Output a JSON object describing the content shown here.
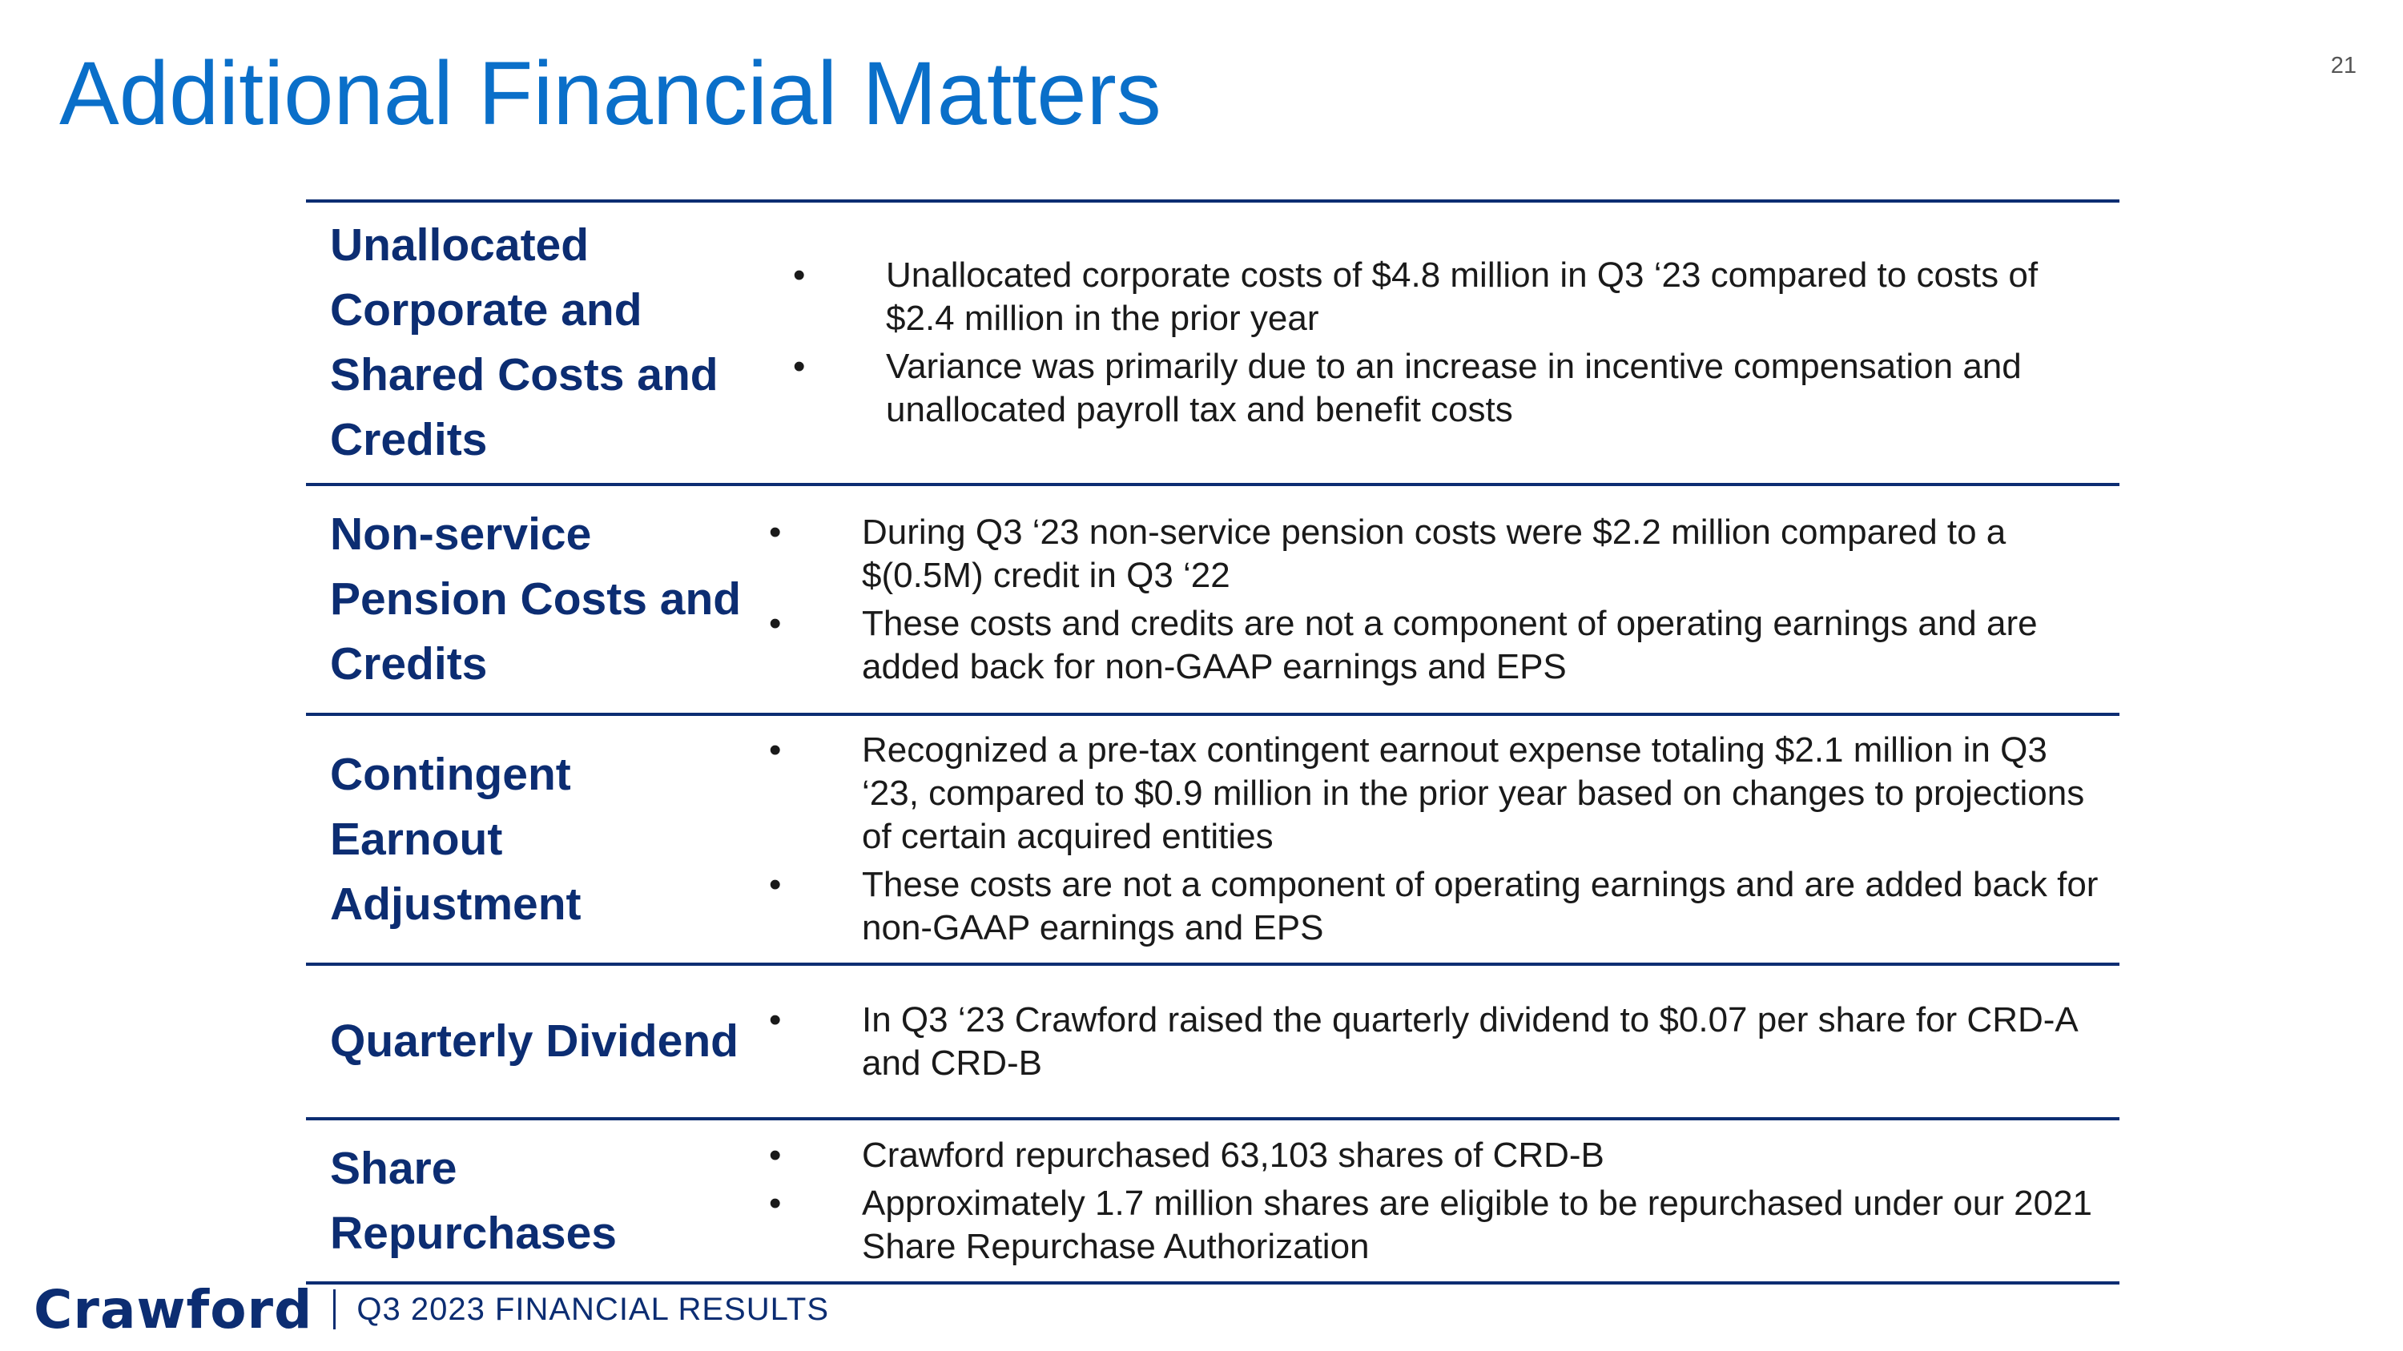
{
  "title": "Additional Financial Matters",
  "page_number": "21",
  "bullet_glyph": "•",
  "rows": [
    {
      "label": "Unallocated Corporate and Shared Costs and Credits",
      "bullets": [
        "Unallocated corporate costs of $4.8 million in Q3 ‘23 compared to costs of $2.4 million in the prior year",
        "Variance was primarily due to an increase in incentive compensation and unallocated payroll tax and benefit costs"
      ]
    },
    {
      "label": "Non-service Pension Costs and Credits",
      "bullets": [
        "During Q3 ‘23 non-service pension costs were $2.2 million compared to a $(0.5M) credit in Q3 ‘22",
        "These costs and credits are not a component of operating earnings and are added back for non-GAAP earnings and EPS"
      ]
    },
    {
      "label": "Contingent Earnout Adjustment",
      "bullets": [
        "Recognized a pre-tax contingent earnout expense totaling $2.1 million in Q3 ‘23, compared to $0.9 million in the prior year based on changes to projections of certain acquired entities",
        "These costs are not a component of operating earnings and are added back for non-GAAP earnings and EPS"
      ]
    },
    {
      "label": "Quarterly Dividend",
      "bullets": [
        "In Q3 ‘23 Crawford raised the quarterly dividend to $0.07 per share for CRD-A and CRD-B"
      ]
    },
    {
      "label": "Share Repurchases",
      "bullets": [
        "Crawford repurchased 63,103 shares of CRD-B",
        "Approximately 1.7 million shares are eligible to be repurchased under our 2021 Share Repurchase Authorization"
      ]
    }
  ],
  "footer": {
    "brand": "Crawford",
    "text": "Q3 2023 FINANCIAL RESULTS"
  },
  "colors": {
    "title": "#0a6fc9",
    "navy": "#0c2d72",
    "body_text": "#1a1a1a"
  }
}
